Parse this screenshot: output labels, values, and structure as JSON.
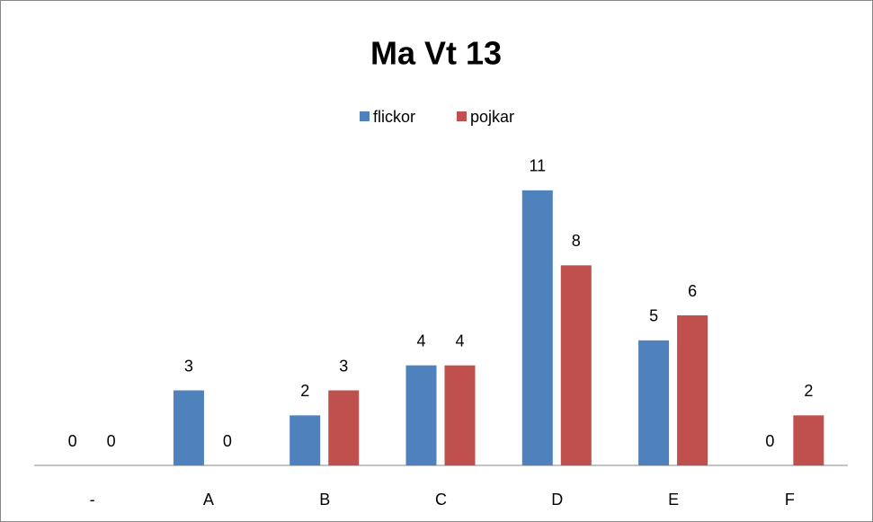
{
  "chart_data": {
    "type": "bar",
    "title": "Ma Vt 13",
    "categories": [
      "-",
      "A",
      "B",
      "C",
      "D",
      "E",
      "F"
    ],
    "series": [
      {
        "name": "flickor",
        "color": "#4f81bd",
        "values": [
          0,
          3,
          2,
          4,
          11,
          5,
          0
        ]
      },
      {
        "name": "pojkar",
        "color": "#c0504d",
        "values": [
          0,
          0,
          3,
          4,
          8,
          6,
          2
        ]
      }
    ],
    "ylim": [
      0,
      12
    ],
    "legend": "top",
    "data_labels": true
  }
}
